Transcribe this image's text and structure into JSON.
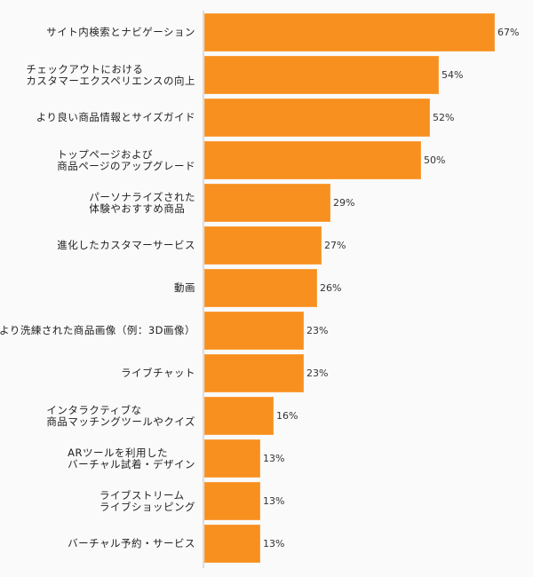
{
  "chart_data": {
    "type": "bar",
    "orientation": "horizontal",
    "title": "",
    "xlabel": "",
    "ylabel": "",
    "xlim": [
      0,
      67
    ],
    "grid": false,
    "legend": null,
    "bar_color": "#f7901e",
    "categories": [
      "サイト内検索とナビゲーション",
      "チェックアウトにおける\nカスタマーエクスペリエンスの向上",
      "より良い商品情報とサイズガイド",
      "トップページおよび\n商品ページのアップグレード",
      "パーソナライズされた\n体験やおすすめ商品",
      "進化したカスタマーサービス",
      "動画",
      "より洗練された商品画像（例：3D画像）",
      "ライブチャット",
      "インタラクティブな\n商品マッチングツールやクイズ",
      "ARツールを利用した\nバーチャル試着・デザイン",
      "ライブストリーム\nライブショッピング",
      "バーチャル予約・サービス"
    ],
    "values": [
      67,
      54,
      52,
      50,
      29,
      27,
      26,
      23,
      23,
      16,
      13,
      13,
      13
    ],
    "value_labels": [
      "67%",
      "54%",
      "52%",
      "50%",
      "29%",
      "27%",
      "26%",
      "23%",
      "23%",
      "16%",
      "13%",
      "13%",
      "13%"
    ]
  }
}
